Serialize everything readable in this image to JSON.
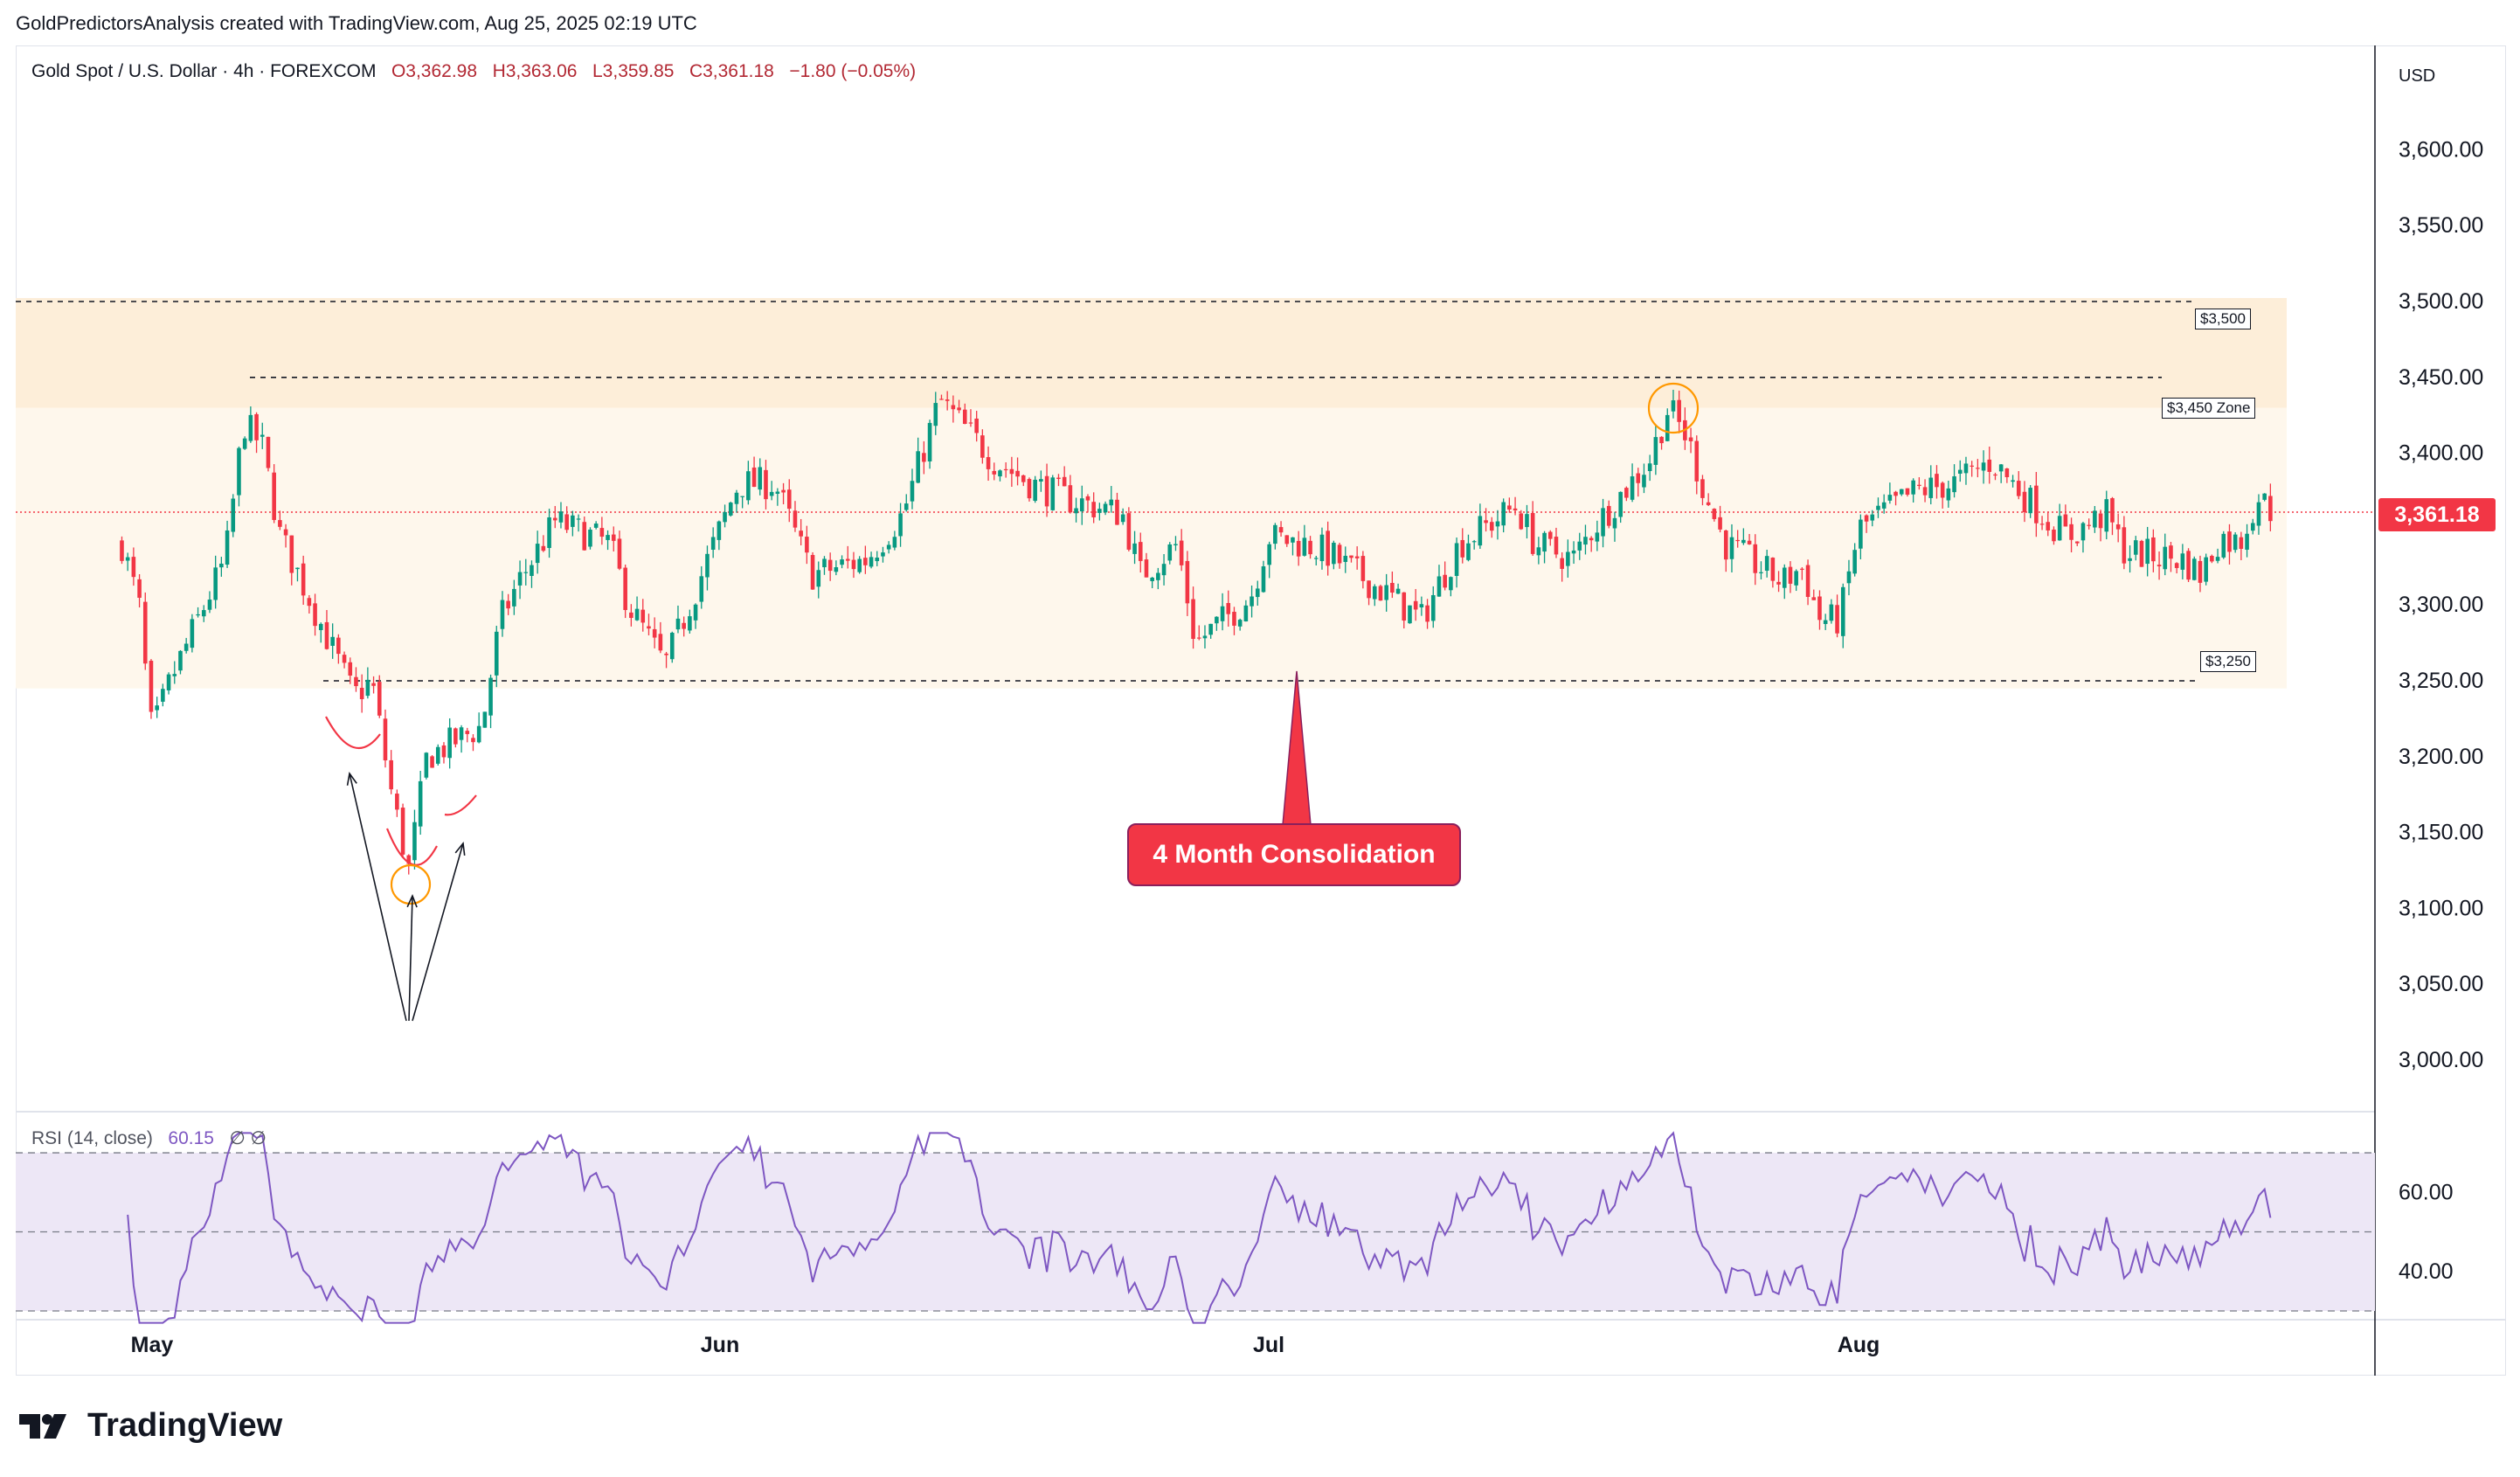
{
  "header": {
    "attribution": "GoldPredictorsAnalysis created with TradingView.com, Aug 25, 2025 02:19 UTC"
  },
  "legend": {
    "symbol": "Gold Spot / U.S. Dollar · 4h · FOREXCOM",
    "open": "O3,362.98",
    "high": "H3,363.06",
    "low": "L3,359.85",
    "close": "C3,361.18",
    "change": "−1.80 (−0.05%)"
  },
  "rsi_legend": {
    "label": "RSI (14, close)",
    "value": "60.15",
    "extra": "∅ ∅"
  },
  "currency": "USD",
  "price_tag": "3,361.18",
  "zone_labels": {
    "l3500": "$3,500",
    "l3450": "$3,450 Zone",
    "l3250": "$3,250"
  },
  "callout": "4 Month Consolidation",
  "branding": {
    "name": "TradingView"
  },
  "colors": {
    "up": "#089981",
    "down": "#f23645",
    "zone_top": "#fdeed9",
    "zone_main": "#fef7ec",
    "rsi_line": "#7e57c2",
    "rsi_band": "#ede7f6"
  },
  "chart_data": [
    {
      "type": "candlestick",
      "title": "Gold Spot / U.S. Dollar · 4h · FOREXCOM",
      "x_ticks": [
        "May",
        "Jun",
        "Jul",
        "Aug"
      ],
      "y_ticks": [
        "3,600.00",
        "3,550.00",
        "3,500.00",
        "3,450.00",
        "3,400.00",
        "3,300.00",
        "3,250.00",
        "3,200.00",
        "3,150.00",
        "3,100.00",
        "3,050.00",
        "3,000.00"
      ],
      "ylim": [
        2970,
        3660
      ],
      "levels": [
        3500,
        3450,
        3250
      ],
      "last_price": 3361.18,
      "path": [
        [
          "Apr 24",
          3340
        ],
        [
          "Apr 28",
          3300
        ],
        [
          "Apr 30",
          3240
        ],
        [
          "May 1",
          3215
        ],
        [
          "May 2",
          3250
        ],
        [
          "May 5",
          3330
        ],
        [
          "May 6",
          3420
        ],
        [
          "May 7",
          3405
        ],
        [
          "May 8",
          3345
        ],
        [
          "May 9",
          3320
        ],
        [
          "May 12",
          3240
        ],
        [
          "May 13",
          3250
        ],
        [
          "May 14",
          3180
        ],
        [
          "May 15",
          3125
        ],
        [
          "May 16",
          3200
        ],
        [
          "May 19",
          3220
        ],
        [
          "May 20",
          3290
        ],
        [
          "May 21",
          3315
        ],
        [
          "May 22",
          3335
        ],
        [
          "May 23",
          3355
        ],
        [
          "May 26",
          3340
        ],
        [
          "May 27",
          3300
        ],
        [
          "May 29",
          3260
        ],
        [
          "May 30",
          3290
        ],
        [
          "Jun 2",
          3380
        ],
        [
          "Jun 4",
          3380
        ],
        [
          "Jun 6",
          3320
        ],
        [
          "Jun 9",
          3330
        ],
        [
          "Jun 11",
          3360
        ],
        [
          "Jun 13",
          3435
        ],
        [
          "Jun 16",
          3395
        ],
        [
          "Jun 18",
          3380
        ],
        [
          "Jun 20",
          3370
        ],
        [
          "Jun 23",
          3360
        ],
        [
          "Jun 24",
          3320
        ],
        [
          "Jun 25",
          3330
        ],
        [
          "Jun 26",
          3340
        ],
        [
          "Jun 27",
          3275
        ],
        [
          "Jun 30",
          3305
        ],
        [
          "Jul 1",
          3345
        ],
        [
          "Jul 3",
          3340
        ],
        [
          "Jul 4",
          3335
        ],
        [
          "Jul 8",
          3300
        ],
        [
          "Jul 9",
          3290
        ],
        [
          "Jul 11",
          3340
        ],
        [
          "Jul 14",
          3365
        ],
        [
          "Jul 15",
          3340
        ],
        [
          "Jul 17",
          3330
        ],
        [
          "Jul 18",
          3350
        ],
        [
          "Jul 21",
          3395
        ],
        [
          "Jul 22",
          3430
        ],
        [
          "Jul 23",
          3410
        ],
        [
          "Jul 24",
          3370
        ],
        [
          "Jul 25",
          3340
        ],
        [
          "Jul 28",
          3315
        ],
        [
          "Jul 29",
          3325
        ],
        [
          "Jul 30",
          3290
        ],
        [
          "Jul 31",
          3290
        ],
        [
          "Aug 1",
          3350
        ],
        [
          "Aug 4",
          3375
        ],
        [
          "Aug 6",
          3380
        ],
        [
          "Aug 8",
          3395
        ],
        [
          "Aug 11",
          3355
        ],
        [
          "Aug 12",
          3345
        ],
        [
          "Aug 14",
          3360
        ],
        [
          "Aug 15",
          3335
        ],
        [
          "Aug 18",
          3330
        ],
        [
          "Aug 19",
          3320
        ],
        [
          "Aug 20",
          3345
        ],
        [
          "Aug 21",
          3340
        ],
        [
          "Aug 22",
          3372
        ],
        [
          "Aug 22 (last)",
          3361
        ]
      ]
    },
    {
      "type": "line",
      "title": "RSI (14, close)",
      "y_ticks": [
        "60.00",
        "40.00"
      ],
      "bands": [
        70,
        50,
        30
      ],
      "last_value": 60.15
    }
  ]
}
